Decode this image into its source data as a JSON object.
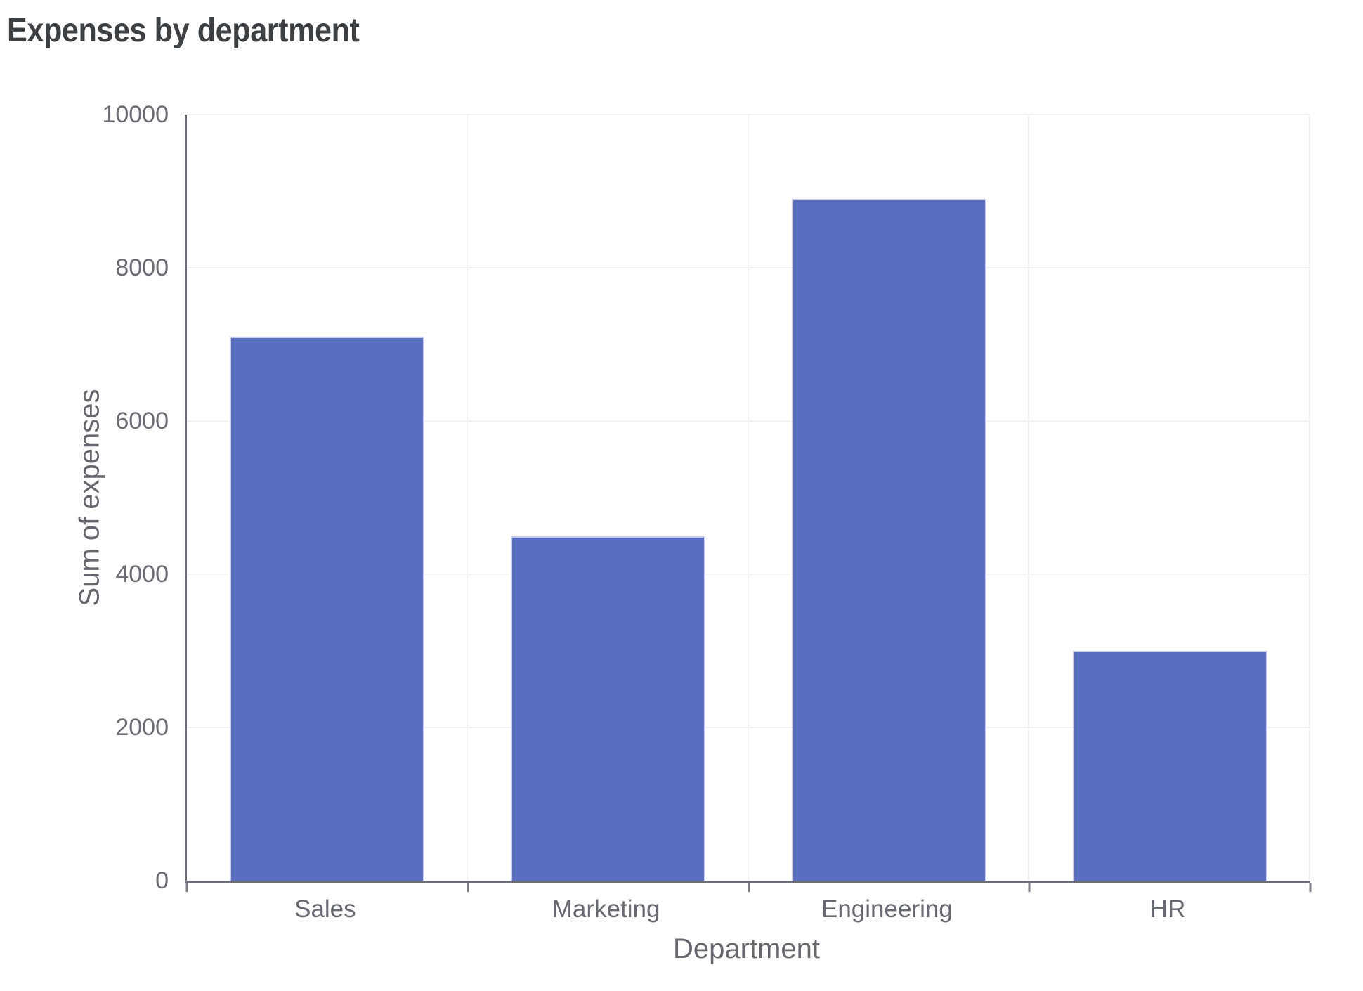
{
  "page": {
    "title": "Expenses by department"
  },
  "chart_data": {
    "type": "bar",
    "title": "Expenses by department",
    "categories": [
      "Sales",
      "Marketing",
      "Engineering",
      "HR"
    ],
    "values": [
      7100,
      4500,
      8900,
      3000
    ],
    "xlabel": "Department",
    "ylabel": "Sum of expenses",
    "ylim": [
      0,
      10000
    ],
    "yticks": [
      0,
      2000,
      4000,
      6000,
      8000,
      10000
    ],
    "grid": true,
    "legend": false,
    "colors": {
      "bar": "#5a6ec1",
      "bar_border": "#c7ceee",
      "axis": "#6c6f77",
      "grid": "#f0f1f4",
      "title_text": "#3c4043",
      "label_text": "#66696f"
    }
  }
}
